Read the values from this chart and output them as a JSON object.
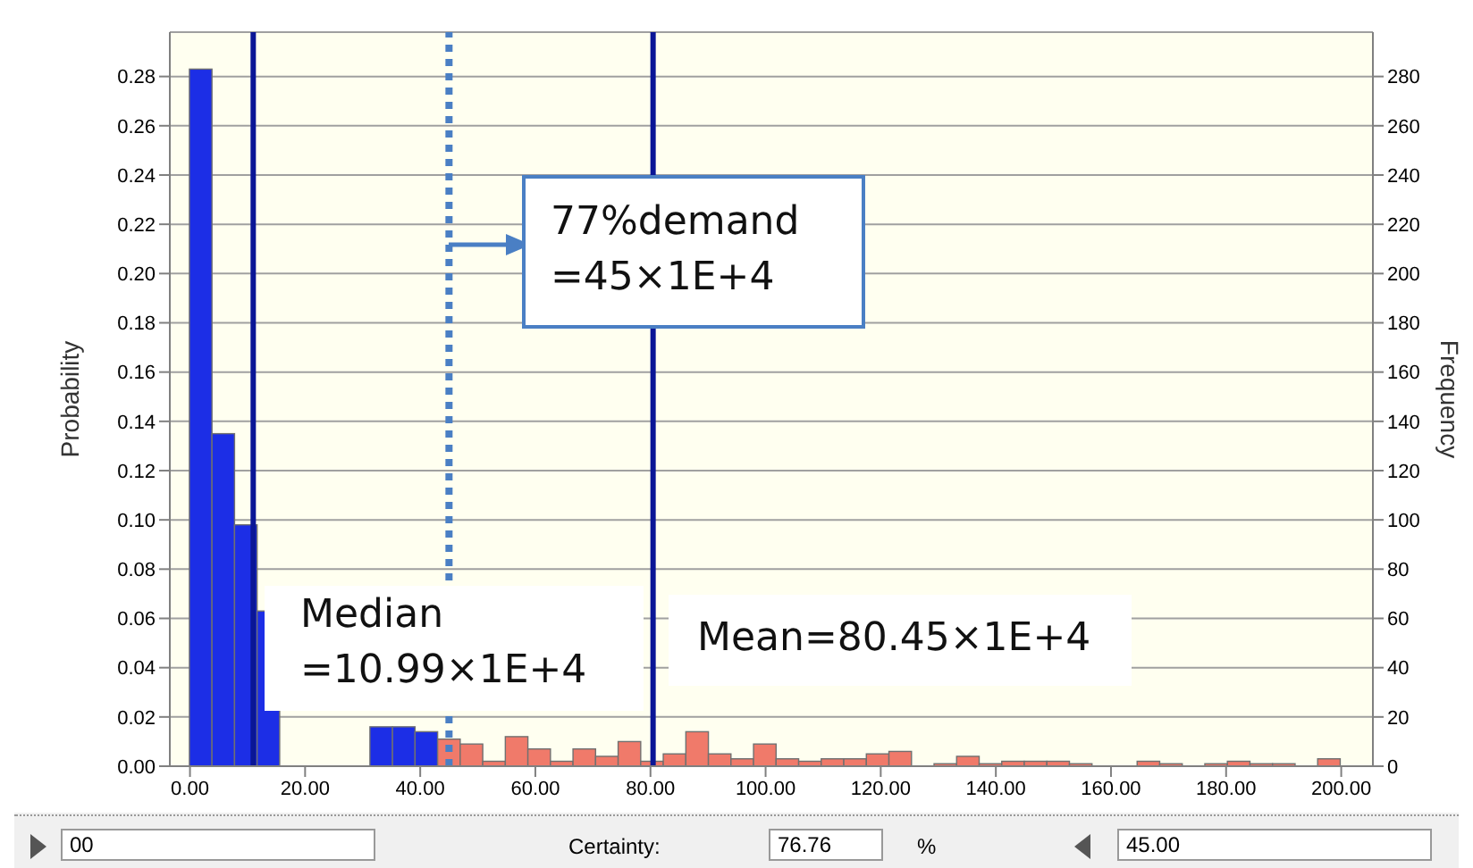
{
  "chart_data": {
    "type": "histogram",
    "bins": [
      0,
      3.92,
      7.84,
      11.76,
      15.68,
      19.6,
      23.52,
      27.44,
      31.36,
      35.28,
      39.2,
      43.12,
      47.04,
      50.96,
      54.88,
      58.8,
      62.72,
      66.64,
      70.56,
      74.48,
      78.4,
      82.32,
      86.24,
      90.16,
      94.08,
      98,
      101.92,
      105.84,
      109.76,
      113.68,
      117.6,
      121.52,
      125.44,
      129.36,
      133.28,
      137.2,
      141.12,
      145.04,
      148.96,
      152.88,
      156.8,
      160.72,
      164.64,
      168.56,
      172.48,
      176.4,
      180.32,
      184.24,
      188.16,
      192.08,
      196,
      199.92
    ],
    "values": [
      0.283,
      0.135,
      0.098,
      0.063,
      null,
      null,
      null,
      null,
      0.016,
      0.016,
      0.014,
      0.011,
      0.009,
      0.002,
      0.012,
      0.007,
      0.002,
      0.007,
      0.004,
      0.01,
      0.002,
      0.005,
      0.014,
      0.005,
      0.003,
      0.009,
      0.003,
      0.002,
      0.003,
      0.003,
      0.005,
      0.006,
      0,
      0.001,
      0.004,
      0.001,
      0.002,
      0.002,
      0.002,
      0.001,
      0,
      0,
      0.002,
      0.001,
      0,
      0.001,
      0.002,
      0.001,
      0.001,
      0,
      0.003
    ],
    "colors": [
      "#1c2ee6",
      "#1c2ee6",
      "#1c2ee6",
      "#1c2ee6",
      "#1c2ee6",
      "#1c2ee6",
      "#1c2ee6",
      "#1c2ee6",
      "#1c2ee6",
      "#1c2ee6",
      "#1c2ee6",
      "#f07a6a",
      "#f07a6a",
      "#f07a6a",
      "#f07a6a",
      "#f07a6a",
      "#f07a6a",
      "#f07a6a",
      "#f07a6a",
      "#f07a6a",
      "#f07a6a",
      "#f07a6a",
      "#f07a6a",
      "#f07a6a",
      "#f07a6a",
      "#f07a6a",
      "#f07a6a",
      "#f07a6a",
      "#f07a6a",
      "#f07a6a",
      "#f07a6a",
      "#f07a6a",
      "#f07a6a",
      "#f07a6a",
      "#f07a6a",
      "#f07a6a",
      "#f07a6a",
      "#f07a6a",
      "#f07a6a",
      "#f07a6a",
      "#f07a6a",
      "#f07a6a",
      "#f07a6a",
      "#f07a6a",
      "#f07a6a",
      "#f07a6a",
      "#f07a6a",
      "#f07a6a",
      "#f07a6a",
      "#f07a6a",
      "#f07a6a"
    ],
    "ylabel": "Probability",
    "y2label": "Frequency",
    "xlim": [
      -3.5,
      205.5
    ],
    "xticks": [
      {
        "value": 0,
        "label": "0.00"
      },
      {
        "value": 20,
        "label": "20.00"
      },
      {
        "value": 40,
        "label": "40.00"
      },
      {
        "value": 60,
        "label": "60.00"
      },
      {
        "value": 80,
        "label": "80.00"
      },
      {
        "value": 100,
        "label": "100.00"
      },
      {
        "value": 120,
        "label": "120.00"
      },
      {
        "value": 140,
        "label": "140.00"
      },
      {
        "value": 160,
        "label": "160.00"
      },
      {
        "value": 180,
        "label": "180.00"
      },
      {
        "value": 200,
        "label": "200.00"
      }
    ],
    "ylim": [
      0,
      0.298
    ],
    "yticks": [
      {
        "value": 0,
        "label": "0.00"
      },
      0.02,
      0.04,
      0.06,
      0.08,
      {
        "value": 0.1,
        "label": "0.10"
      },
      0.12,
      0.14,
      0.16,
      0.18,
      {
        "value": 0.2,
        "label": "0.20"
      },
      0.22,
      0.24,
      0.26,
      0.28
    ],
    "y2lim": [
      0,
      298
    ],
    "y2ticks": [
      0,
      20,
      40,
      60,
      80,
      100,
      120,
      140,
      160,
      180,
      200,
      220,
      240,
      260,
      280
    ],
    "grid": "y",
    "legend": false,
    "ref_lines": [
      {
        "axis": "x",
        "value": 10.99,
        "color": "#0a1696",
        "line_style": "solid"
      },
      {
        "axis": "x",
        "value": 45,
        "color": "#4a7fc4",
        "line_style": "dotted"
      },
      {
        "axis": "x",
        "value": 80.45,
        "color": "#0a1696",
        "line_style": "solid"
      }
    ],
    "annotations": [
      "77%demand\n=45×1E+4",
      "Median\n=10.99×1E+4",
      "Mean=80.45×1E+4",
      "00",
      "Certainty:",
      "76.76",
      "%",
      "45.00"
    ]
  }
}
